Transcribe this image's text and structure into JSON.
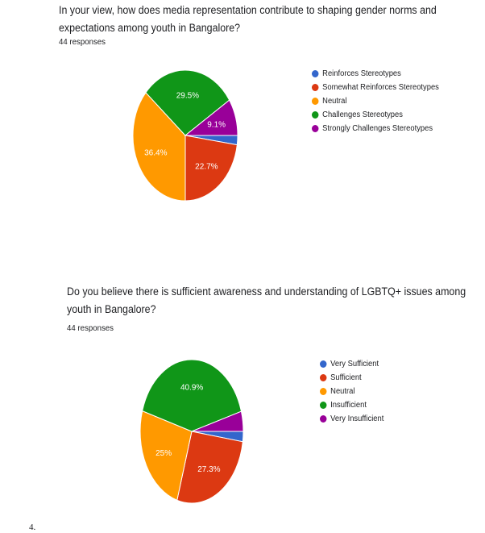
{
  "page": {
    "page_number": "4."
  },
  "chart_data": [
    {
      "type": "pie",
      "title": "In your view, how does media representation contribute to shaping gender norms and expectations among youth in Bangalore?",
      "subtitle": "44 responses",
      "legend_position": "right",
      "categories": [
        "Reinforces Stereotypes",
        "Somewhat Reinforces Stereotypes",
        "Neutral",
        "Challenges Stereotypes",
        "Strongly Challenges Stereotypes"
      ],
      "values": [
        2.3,
        22.7,
        36.4,
        29.5,
        9.1
      ],
      "labels": [
        "",
        "22.7%",
        "36.4%",
        "29.5%",
        "9.1%"
      ],
      "colors": [
        "#3366cc",
        "#dc3912",
        "#ff9900",
        "#109618",
        "#990099"
      ]
    },
    {
      "type": "pie",
      "title": "Do you believe there is sufficient awareness and understanding of LGBTQ+ issues among youth in Bangalore?",
      "subtitle": "44 responses",
      "legend_position": "right",
      "categories": [
        "Very Sufficient",
        "Sufficient",
        "Neutral",
        "Insufficient",
        "Very Insufficient"
      ],
      "values": [
        2.3,
        27.3,
        25,
        40.9,
        4.5
      ],
      "labels": [
        "",
        "27.3%",
        "25%",
        "40.9%",
        ""
      ],
      "colors": [
        "#3366cc",
        "#dc3912",
        "#ff9900",
        "#109618",
        "#990099"
      ]
    }
  ]
}
